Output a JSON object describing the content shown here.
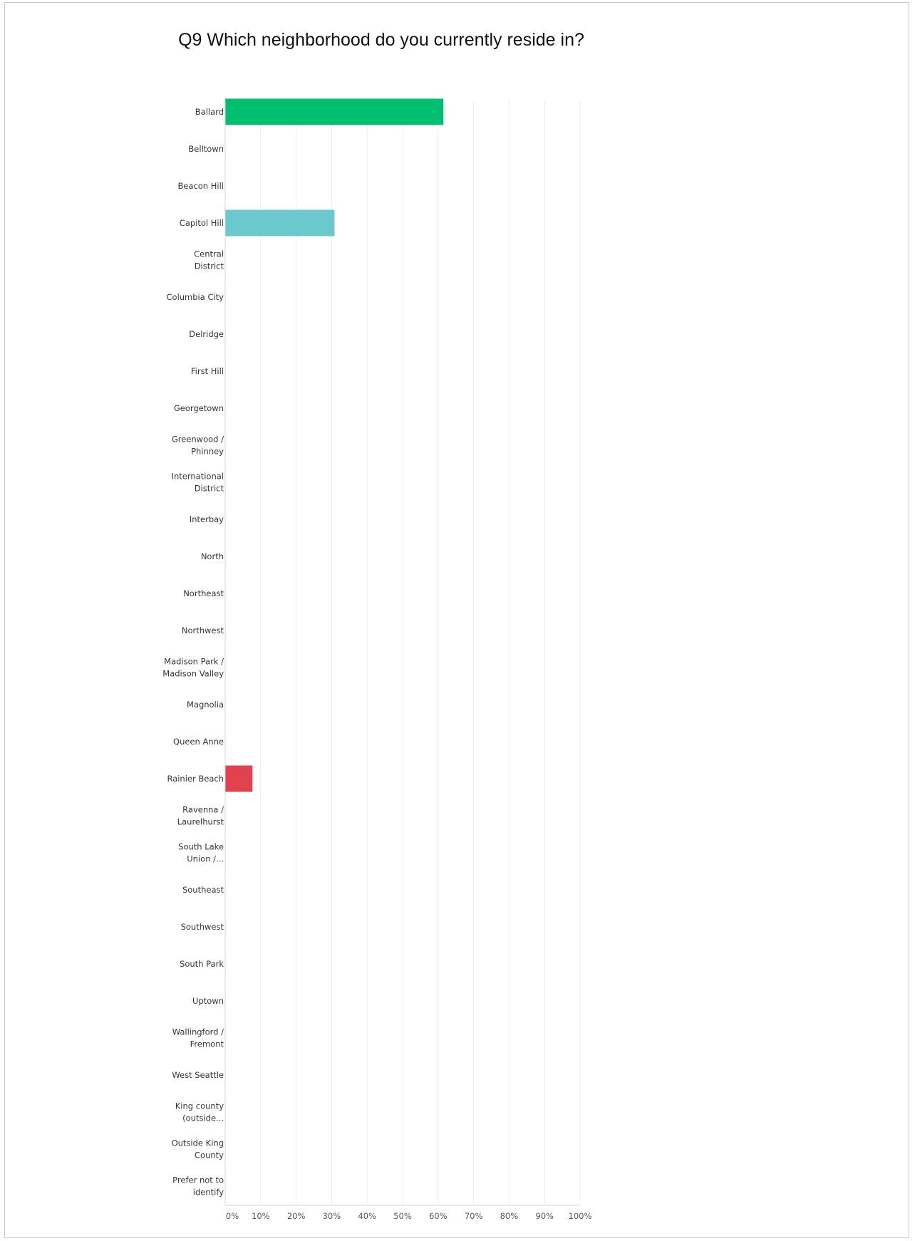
{
  "chart_data": {
    "type": "bar",
    "orientation": "horizontal",
    "title": "Q9 Which neighborhood do you currently reside in?",
    "categories": [
      [
        "Ballard"
      ],
      [
        "Belltown"
      ],
      [
        "Beacon Hill"
      ],
      [
        "Capitol Hill"
      ],
      [
        "Central",
        "District"
      ],
      [
        "Columbia City"
      ],
      [
        "Delridge"
      ],
      [
        "First Hill"
      ],
      [
        "Georgetown"
      ],
      [
        "Greenwood /",
        "Phinney"
      ],
      [
        "International",
        "District"
      ],
      [
        "Interbay"
      ],
      [
        "North"
      ],
      [
        "Northeast"
      ],
      [
        "Northwest"
      ],
      [
        "Madison Park /",
        "Madison Valley"
      ],
      [
        "Magnolia"
      ],
      [
        "Queen Anne"
      ],
      [
        "Rainier Beach"
      ],
      [
        "Ravenna /",
        "Laurelhurst"
      ],
      [
        "South Lake",
        "Union /..."
      ],
      [
        "Southeast"
      ],
      [
        "Southwest"
      ],
      [
        "South Park"
      ],
      [
        "Uptown"
      ],
      [
        "Wallingford /",
        "Fremont"
      ],
      [
        "West Seattle"
      ],
      [
        "King county",
        "(outside..."
      ],
      [
        "Outside King",
        "County"
      ],
      [
        "Prefer not to",
        "identify"
      ]
    ],
    "values": [
      61.5,
      0,
      0,
      30.8,
      0,
      0,
      0,
      0,
      0,
      0,
      0,
      0,
      0,
      0,
      0,
      0,
      0,
      0,
      7.7,
      0,
      0,
      0,
      0,
      0,
      0,
      0,
      0,
      0,
      0,
      0
    ],
    "bar_colors": {
      "0": "#00bf6f",
      "3": "#6bc8cd",
      "18": "#e2414f"
    },
    "xlim": [
      0,
      100
    ],
    "xticks": [
      "0%",
      "10%",
      "20%",
      "30%",
      "40%",
      "50%",
      "60%",
      "70%",
      "80%",
      "90%",
      "100%"
    ],
    "grid": true,
    "gridline_color": "#ededed"
  }
}
